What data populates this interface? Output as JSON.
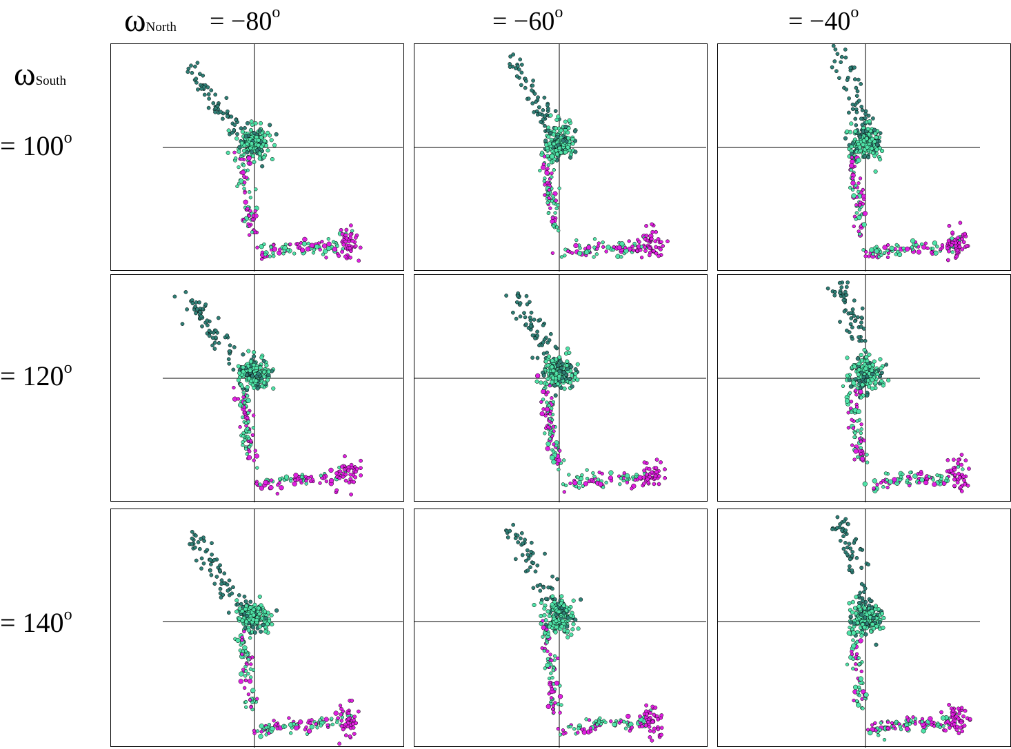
{
  "header": {
    "north_symbol": "ω",
    "north_sub": "North",
    "south_symbol": "ω",
    "south_sub": "South",
    "degree": "o"
  },
  "columns": [
    {
      "label": "=  −80"
    },
    {
      "label": "=  −60"
    },
    {
      "label": "=  −40"
    }
  ],
  "rows": [
    {
      "label": "= 100"
    },
    {
      "label": "= 120"
    },
    {
      "label": "= 140"
    }
  ],
  "colors": {
    "dark_teal": "#2f7f76",
    "light_green": "#4fe3a8",
    "magenta": "#e020e0",
    "axis": "#000000"
  },
  "chart_data": {
    "type": "scatter",
    "grid": false,
    "panels": 9,
    "series": [
      {
        "color": "dark_teal"
      },
      {
        "color": "light_green"
      },
      {
        "color": "magenta"
      }
    ]
  }
}
